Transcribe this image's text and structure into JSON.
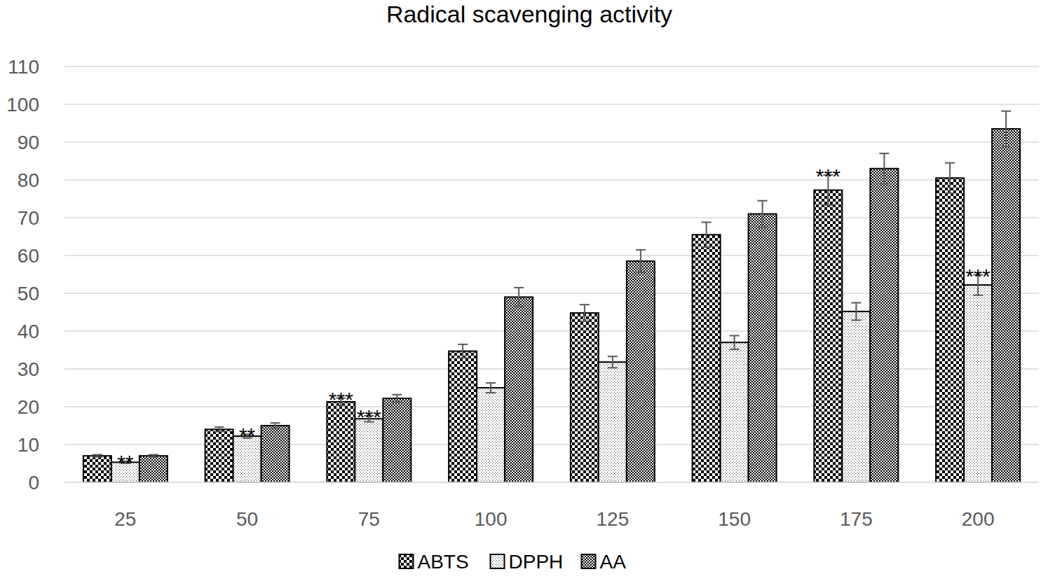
{
  "chart_data": {
    "type": "bar",
    "title": "Radical scavenging activity",
    "categories": [
      "25",
      "50",
      "75",
      "100",
      "125",
      "150",
      "175",
      "200"
    ],
    "series": [
      {
        "name": "ABTS",
        "color": "#000000",
        "values": [
          7,
          14,
          21.3,
          34.7,
          44.8,
          65.5,
          77.3,
          80.5
        ],
        "errors": [
          0.3,
          0.6,
          1,
          1.8,
          2.2,
          3.3,
          4,
          4
        ]
      },
      {
        "name": "DPPH",
        "color": "#000000",
        "values": [
          5.3,
          12.2,
          16.8,
          25,
          31.8,
          37,
          45.2,
          52.2
        ],
        "errors": [
          0.3,
          0.5,
          0.8,
          1.3,
          1.5,
          1.8,
          2.3,
          2.7
        ]
      },
      {
        "name": "AA",
        "color": "#000000",
        "values": [
          7,
          15,
          22.2,
          49,
          58.5,
          71,
          83,
          93.5
        ],
        "errors": [
          0.3,
          0.7,
          1,
          2.5,
          3,
          3.5,
          4,
          4.7
        ]
      }
    ],
    "annotations": [
      {
        "text": "**",
        "category": "25",
        "series": "DPPH"
      },
      {
        "text": "**",
        "category": "50",
        "series": "DPPH"
      },
      {
        "text": "***",
        "category": "75",
        "series": "ABTS"
      },
      {
        "text": "***",
        "category": "75",
        "series": "DPPH"
      },
      {
        "text": "***",
        "category": "175",
        "series": "ABTS"
      },
      {
        "text": "***",
        "category": "200",
        "series": "DPPH"
      }
    ],
    "ylim": [
      0,
      110
    ],
    "yticks": [
      0,
      10,
      20,
      30,
      40,
      50,
      60,
      70,
      80,
      90,
      100,
      110
    ],
    "grid": true,
    "legend": "bottom"
  }
}
